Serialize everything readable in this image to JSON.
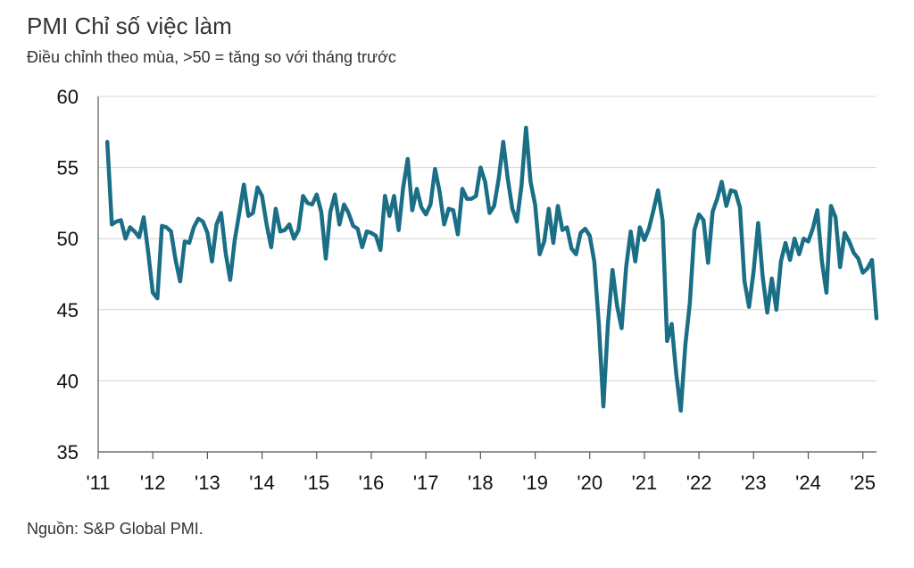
{
  "title": "PMI Chỉ số việc làm",
  "subtitle": "Điều chỉnh theo mùa, >50 = tăng so với tháng trước",
  "source": "Nguồn: S&P Global PMI.",
  "line_color": "#1a6e85",
  "chart_data": {
    "type": "line",
    "title": "PMI Chỉ số việc làm",
    "subtitle": "Điều chỉnh theo mùa, >50 = tăng so với tháng trước",
    "xlabel": "",
    "ylabel": "",
    "ylim": [
      35,
      60
    ],
    "yticks": [
      35,
      40,
      45,
      50,
      55,
      60
    ],
    "xticks": [
      {
        "label": "'11",
        "year": 2011
      },
      {
        "label": "'12",
        "year": 2012
      },
      {
        "label": "'13",
        "year": 2013
      },
      {
        "label": "'14",
        "year": 2014
      },
      {
        "label": "'15",
        "year": 2015
      },
      {
        "label": "'16",
        "year": 2016
      },
      {
        "label": "'17",
        "year": 2017
      },
      {
        "label": "'18",
        "year": 2018
      },
      {
        "label": "'19",
        "year": 2019
      },
      {
        "label": "'20",
        "year": 2020
      },
      {
        "label": "'21",
        "year": 2021
      },
      {
        "label": "'22",
        "year": 2022
      },
      {
        "label": "'23",
        "year": 2023
      },
      {
        "label": "'24",
        "year": 2024
      },
      {
        "label": "'25",
        "year": 2025
      }
    ],
    "grid": true,
    "start": "2011-03",
    "end": "2025-04",
    "series": [
      {
        "values": [
          56.8,
          51.0,
          51.2,
          51.3,
          50.0,
          50.8,
          50.5,
          50.1,
          51.5,
          49.0,
          46.2,
          45.8,
          50.9,
          50.8,
          50.5,
          48.5,
          47.0,
          49.8,
          49.7,
          50.8,
          51.4,
          51.2,
          50.4,
          48.4,
          51.0,
          51.8,
          49.0,
          47.1,
          49.9,
          51.8,
          53.8,
          51.6,
          51.8,
          53.6,
          53.0,
          51.0,
          49.4,
          52.1,
          50.5,
          50.6,
          51.0,
          50.0,
          50.6,
          53.0,
          52.5,
          52.4,
          53.1,
          51.9,
          48.6,
          51.9,
          53.1,
          51.0,
          52.4,
          51.8,
          50.9,
          50.7,
          49.4,
          50.5,
          50.4,
          50.2,
          49.2,
          53.0,
          51.6,
          53.0,
          50.6,
          53.6,
          55.6,
          52.0,
          53.5,
          52.2,
          51.7,
          52.4,
          54.9,
          53.3,
          51.0,
          52.1,
          52.0,
          50.3,
          53.5,
          52.8,
          52.8,
          53.0,
          55.0,
          54.0,
          51.8,
          52.3,
          54.2,
          56.8,
          54.2,
          52.1,
          51.2,
          53.7,
          57.8,
          54.0,
          52.4,
          48.9,
          49.8,
          52.1,
          49.7,
          52.3,
          50.6,
          50.8,
          49.3,
          48.9,
          50.4,
          50.7,
          50.2,
          48.4,
          44.0,
          38.2,
          44.0,
          47.8,
          45.3,
          43.7,
          48.0,
          50.5,
          48.4,
          50.8,
          49.9,
          50.7,
          52.0,
          53.4,
          51.3,
          42.8,
          44.0,
          40.5,
          37.9,
          42.5,
          45.5,
          50.6,
          51.7,
          51.3,
          48.3,
          51.9,
          52.8,
          54.0,
          52.3,
          53.4,
          53.3,
          52.2,
          47.0,
          45.2,
          47.7,
          51.1,
          47.3,
          44.8,
          47.2,
          45.0,
          48.4,
          49.7,
          48.5,
          50.0,
          48.9,
          50.0,
          49.8,
          50.7,
          52.0,
          48.4,
          46.2,
          52.3,
          51.5,
          48.0,
          50.4,
          49.8,
          49.0,
          48.6,
          47.6,
          47.9,
          48.5,
          44.4
        ]
      }
    ]
  }
}
